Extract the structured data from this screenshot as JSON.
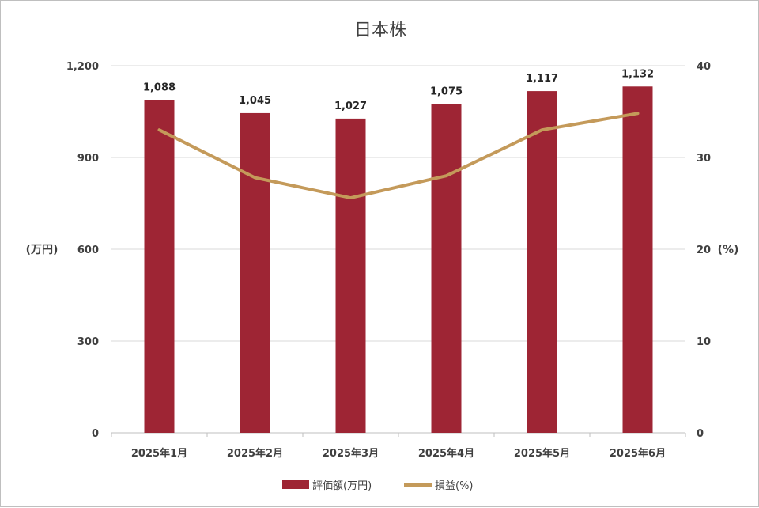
{
  "chart_data": {
    "type": "bar",
    "title": "日本株",
    "categories": [
      "2025年1月",
      "2025年2月",
      "2025年3月",
      "2025年4月",
      "2025年5月",
      "2025年6月"
    ],
    "series": [
      {
        "name": "評価額(万円)",
        "type": "bar",
        "axis": "left",
        "color": "#9e2534",
        "values": [
          1088,
          1045,
          1027,
          1075,
          1117,
          1132
        ],
        "data_labels": [
          "1,088",
          "1,045",
          "1,027",
          "1,075",
          "1,117",
          "1,132"
        ]
      },
      {
        "name": "損益(%)",
        "type": "line",
        "axis": "right",
        "color": "#c49a5a",
        "values": [
          33,
          27.8,
          25.6,
          28,
          33,
          34.8
        ]
      }
    ],
    "ylabel": "(万円)",
    "y2label": "(%)",
    "ylim": [
      0,
      1200
    ],
    "y2lim": [
      0,
      40
    ],
    "yticks": [
      "0",
      "300",
      "600",
      "900",
      "1,200"
    ],
    "y2ticks": [
      "0",
      "10",
      "20",
      "30",
      "40"
    ],
    "grid": true,
    "legend_position": "bottom"
  }
}
